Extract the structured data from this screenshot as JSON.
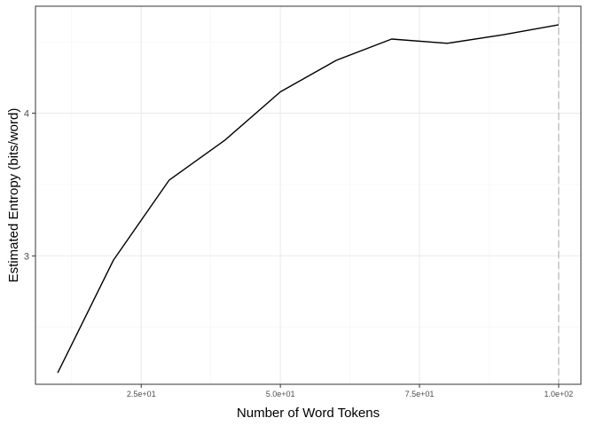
{
  "chart_data": {
    "type": "line",
    "title": "",
    "xlabel": "Number of Word Tokens",
    "ylabel": "Estimated Entropy (bits/word)",
    "xlim": [
      6,
      104
    ],
    "ylim": [
      2.1,
      4.75
    ],
    "x_ticks": [
      {
        "value": 25,
        "label": "2.5e+01"
      },
      {
        "value": 50,
        "label": "5.0e+01"
      },
      {
        "value": 75,
        "label": "7.5e+01"
      },
      {
        "value": 100,
        "label": "1.0e+02"
      }
    ],
    "y_ticks": [
      {
        "value": 3,
        "label": "3"
      },
      {
        "value": 4,
        "label": "4"
      }
    ],
    "x_minor_grid": [
      12.5,
      37.5,
      62.5,
      87.5
    ],
    "y_minor_grid": [
      2.5,
      3.5,
      4.5
    ],
    "grid": true,
    "series": [
      {
        "x": [
          10,
          20,
          30,
          40,
          50,
          60,
          70,
          80,
          90,
          100
        ],
        "y": [
          2.18,
          2.97,
          3.53,
          3.81,
          4.15,
          4.37,
          4.52,
          4.49,
          4.55,
          4.62
        ],
        "color": "#000000"
      }
    ],
    "reference_line": {
      "x": 100,
      "color": "#bfbfbf",
      "style": "dashed"
    },
    "panel_border_color": "#333333",
    "grid_major_color": "#ebebeb",
    "grid_minor_color": "#f4f4f4"
  }
}
